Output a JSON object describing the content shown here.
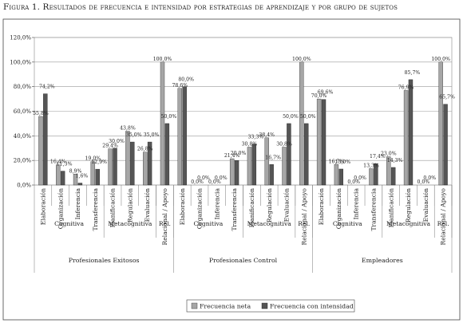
{
  "figure_title": "Figura 1. Resultados de frecuencia e intensidad por estrategias de aprendizaje y por grupo de sujetos",
  "chart_data": {
    "type": "bar",
    "ylim": [
      0,
      120
    ],
    "yticks": [
      "0,0%",
      "20,0%",
      "40,0%",
      "60,0%",
      "80,0%",
      "100,0%",
      "120,0%"
    ],
    "grid": true,
    "legend_position": "bottom-right",
    "colors": {
      "neta": "#a6a6a6",
      "intensidad": "#555555"
    },
    "series": [
      {
        "name": "Frecuencia neta",
        "key": "neta"
      },
      {
        "name": "Frecuencia con intensidad",
        "key": "intensidad"
      }
    ],
    "groups": [
      {
        "name": "Profesionales Exitosos",
        "subgroups": [
          {
            "name": "Cognitiva",
            "count": 4
          },
          {
            "name": "Metacognitiva",
            "count": 3
          },
          {
            "name": "Rel.",
            "count": 1
          }
        ],
        "categories": [
          {
            "label": "Elaboración",
            "values": [
              55.8,
              74.2
            ],
            "labels": [
              "55,8%",
              "74,2%"
            ]
          },
          {
            "label": "Organización",
            "values": [
              16.4,
              11.3
            ],
            "labels": [
              "16,4%",
              "11,3%"
            ]
          },
          {
            "label": "Inferencia",
            "values": [
              8.9,
              1.6
            ],
            "labels": [
              "8,9%",
              "1,6%"
            ]
          },
          {
            "label": "Transferencia",
            "values": [
              19.0,
              12.9
            ],
            "labels": [
              "19,0%",
              "12,9%"
            ]
          },
          {
            "label": "Planificación",
            "values": [
              29.4,
              30.0
            ],
            "labels": [
              "29,4%",
              "30,0%"
            ]
          },
          {
            "label": "Regulación",
            "values": [
              43.8,
              35.0
            ],
            "labels": [
              "43,8%",
              "35,0%"
            ]
          },
          {
            "label": "Evaluación",
            "values": [
              26.8,
              35.0
            ],
            "labels": [
              "26,8%",
              "35,0%"
            ]
          },
          {
            "label": "Relacional / Apoyo",
            "values": [
              100.0,
              50.0
            ],
            "labels": [
              "100,0%",
              "50,0%"
            ]
          }
        ]
      },
      {
        "name": "Profesionales Control",
        "subgroups": [
          {
            "name": "Cognitiva",
            "count": 4
          },
          {
            "name": "Metacognitiva",
            "count": 3
          },
          {
            "name": "Rel.",
            "count": 1
          }
        ],
        "categories": [
          {
            "label": "Elaboración",
            "values": [
              78.6,
              80.0
            ],
            "labels": [
              "78,6%",
              "80,0%"
            ]
          },
          {
            "label": "Organización",
            "values": [
              0.0,
              0.0
            ],
            "labels": [
              "0,0%",
              "0,0%"
            ]
          },
          {
            "label": "Inferencia",
            "values": [
              0.0,
              0.0
            ],
            "labels": [
              "0,0%",
              "0,0%"
            ]
          },
          {
            "label": "Transferencia",
            "values": [
              21.4,
              20.0
            ],
            "labels": [
              "21,4%",
              "20,0%"
            ]
          },
          {
            "label": "Planificación",
            "values": [
              30.8,
              33.3
            ],
            "labels": [
              "30,8%",
              "33,3%"
            ]
          },
          {
            "label": "Regulación",
            "values": [
              38.4,
              16.7
            ],
            "labels": [
              "38,4%",
              "16,7%"
            ]
          },
          {
            "label": "Evaluación",
            "values": [
              30.8,
              50.0
            ],
            "labels": [
              "30,8%",
              "50,0%"
            ]
          },
          {
            "label": "Relacional / Apoyo",
            "values": [
              100.0,
              50.0
            ],
            "labels": [
              "100,0%",
              "50,0%"
            ]
          }
        ]
      },
      {
        "name": "Empleadores",
        "subgroups": [
          {
            "name": "Cognitiva",
            "count": 4
          },
          {
            "name": "Metacognitiva",
            "count": 3
          },
          {
            "name": "Rel.",
            "count": 1
          }
        ],
        "categories": [
          {
            "label": "Elaboración",
            "values": [
              70.0,
              69.6
            ],
            "labels": [
              "70,0%",
              "69,6%"
            ]
          },
          {
            "label": "Organización",
            "values": [
              16.7,
              13.0
            ],
            "labels": [
              "16,7%",
              "13,0%"
            ]
          },
          {
            "label": "Inferencia",
            "values": [
              0.0,
              0.0
            ],
            "labels": [
              "0,0%",
              "0,0%"
            ]
          },
          {
            "label": "Transferencia",
            "values": [
              13.3,
              17.4
            ],
            "labels": [
              "13,3%",
              "17,4%"
            ]
          },
          {
            "label": "Planificación",
            "values": [
              23.0,
              14.3
            ],
            "labels": [
              "23,0%",
              "14,3%"
            ]
          },
          {
            "label": "Regulación",
            "values": [
              76.9,
              85.7
            ],
            "labels": [
              "76,9%",
              "85,7%"
            ]
          },
          {
            "label": "Evaluación",
            "values": [
              0.0,
              0.0
            ],
            "labels": [
              "0,0%",
              "0,0%"
            ]
          },
          {
            "label": "Relacional / Apoyo",
            "values": [
              100.0,
              65.7
            ],
            "labels": [
              "100,0%",
              "65,7%"
            ]
          }
        ]
      }
    ]
  }
}
